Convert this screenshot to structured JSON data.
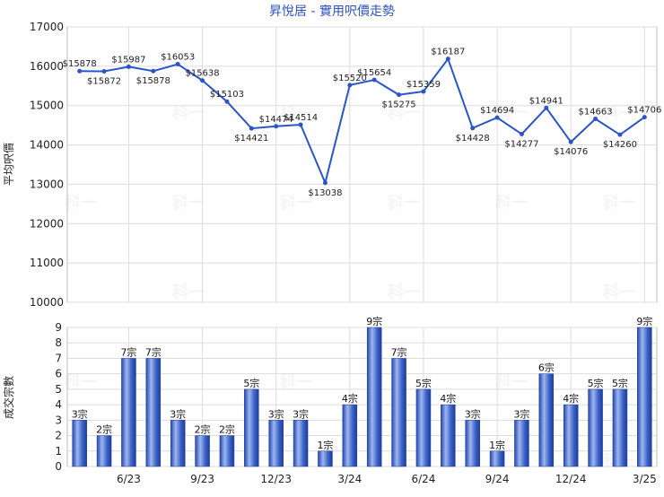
{
  "chart_data": [
    {
      "type": "line",
      "title": "昇悅居 - 實用呎價走勢",
      "ylabel": "平均呎價",
      "ylim": [
        10000,
        17000
      ],
      "yticks": [
        10000,
        11000,
        12000,
        13000,
        14000,
        15000,
        16000,
        17000
      ],
      "grid": true,
      "line_color": "#2a55c6",
      "values": [
        15878,
        15872,
        15987,
        15878,
        16053,
        15638,
        15103,
        14421,
        14474,
        14514,
        13038,
        15520,
        15654,
        15275,
        15359,
        16187,
        14428,
        14694,
        14277,
        14941,
        14076,
        14663,
        14260,
        14706
      ],
      "point_labels": [
        "$15878",
        "$15872",
        "$15987",
        "$15878",
        "$16053",
        "$15638",
        "$15103",
        "$14421",
        "$14474",
        "$14514",
        "$13038",
        "$15520",
        "$15654",
        "$15275",
        "$15359",
        "$16187",
        "$14428",
        "$14694",
        "$14277",
        "$14941",
        "$14076",
        "$14663",
        "$14260",
        "$14706"
      ]
    },
    {
      "type": "bar",
      "ylabel": "成交宗數",
      "ylim": [
        0,
        9
      ],
      "yticks": [
        0,
        1,
        2,
        3,
        4,
        5,
        6,
        7,
        8,
        9
      ],
      "grid": true,
      "bar_color": "#3a63c8",
      "values": [
        3,
        2,
        7,
        7,
        3,
        2,
        2,
        5,
        3,
        3,
        1,
        4,
        9,
        7,
        5,
        4,
        3,
        1,
        3,
        6,
        4,
        5,
        5,
        9
      ],
      "bar_labels": [
        "3宗",
        "2宗",
        "7宗",
        "7宗",
        "3宗",
        "2宗",
        "2宗",
        "5宗",
        "3宗",
        "3宗",
        "1宗",
        "4宗",
        "9宗",
        "7宗",
        "5宗",
        "4宗",
        "3宗",
        "1宗",
        "3宗",
        "6宗",
        "4宗",
        "5宗",
        "5宗",
        "9宗"
      ],
      "x_tick_labels": [
        {
          "index": 2,
          "label": "6/23"
        },
        {
          "index": 5,
          "label": "9/23"
        },
        {
          "index": 8,
          "label": "12/23"
        },
        {
          "index": 11,
          "label": "3/24"
        },
        {
          "index": 14,
          "label": "6/24"
        },
        {
          "index": 17,
          "label": "9/24"
        },
        {
          "index": 20,
          "label": "12/24"
        },
        {
          "index": 23,
          "label": "3/25"
        }
      ]
    }
  ],
  "watermark": "科一"
}
